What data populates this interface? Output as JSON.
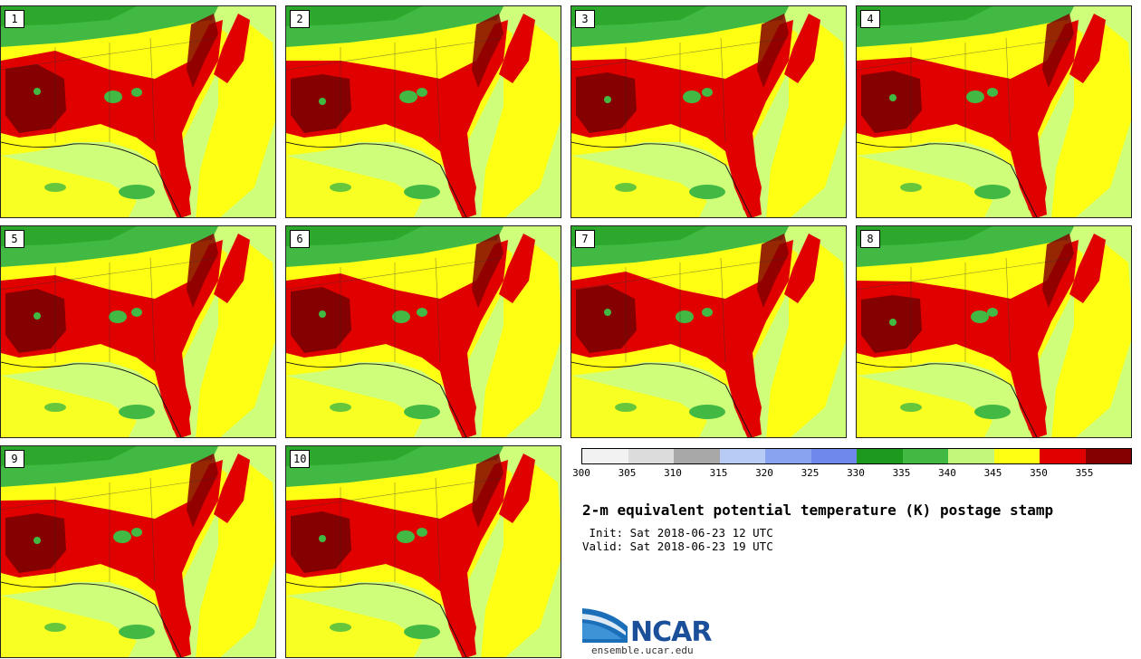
{
  "panels": [
    {
      "label": "1"
    },
    {
      "label": "2"
    },
    {
      "label": "3"
    },
    {
      "label": "4"
    },
    {
      "label": "5"
    },
    {
      "label": "6"
    },
    {
      "label": "7"
    },
    {
      "label": "8"
    },
    {
      "label": "9"
    },
    {
      "label": "10"
    }
  ],
  "colorbar": {
    "colors": [
      "#f2f2f2",
      "#dcdcdc",
      "#a8a8a8",
      "#b7cbf5",
      "#8aa3f0",
      "#6f88ec",
      "#1d9a1d",
      "#42b942",
      "#c3f77c",
      "#ffff14",
      "#e00000",
      "#850000"
    ],
    "ticks": [
      "300",
      "305",
      "310",
      "315",
      "320",
      "325",
      "330",
      "335",
      "340",
      "345",
      "350",
      "355"
    ]
  },
  "map_colors": {
    "ocean_light": "#cfff7a",
    "yellow": "#ffff14",
    "green_dark": "#1d9a1d",
    "green": "#42b942",
    "red": "#e00000",
    "dark_red": "#850000"
  },
  "title": "2-m equivalent potential temperature (K) postage stamp",
  "init": " Init: Sat 2018-06-23 12 UTC",
  "valid": "Valid: Sat 2018-06-23 19 UTC",
  "logo": {
    "name": "NCAR",
    "url": "ensemble.ucar.edu"
  }
}
